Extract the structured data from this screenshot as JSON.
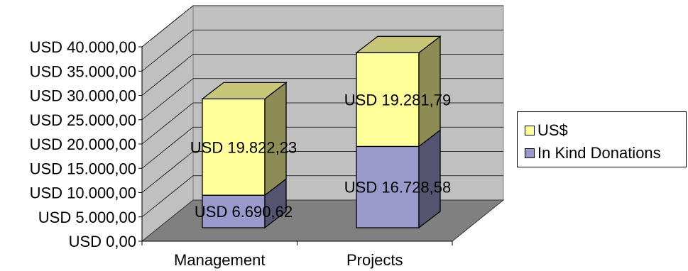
{
  "chart_data": {
    "type": "bar",
    "stacked": true,
    "three_d": true,
    "categories": [
      "Management",
      "Projects"
    ],
    "series": [
      {
        "name": "In Kind Donations",
        "values": [
          6690.62,
          16728.58
        ],
        "labels": [
          "USD 6.690,62",
          "USD 16.728,58"
        ],
        "color": "#9999cc"
      },
      {
        "name": "US$",
        "values": [
          19822.23,
          19281.79
        ],
        "labels": [
          "USD 19.822,23",
          "USD 19.281,79"
        ],
        "color": "#ffff99"
      }
    ],
    "yticks": [
      "USD 0,00",
      "USD 5.000,00",
      "USD 10.000,00",
      "USD 15.000,00",
      "USD 20.000,00",
      "USD 25.000,00",
      "USD 30.000,00",
      "USD 35.000,00",
      "USD 40.000,00"
    ],
    "ylim": [
      0,
      40000
    ],
    "grid": true,
    "legend_position": "right",
    "colors": {
      "wall": "#c0c0c0",
      "floor": "#808080"
    }
  }
}
